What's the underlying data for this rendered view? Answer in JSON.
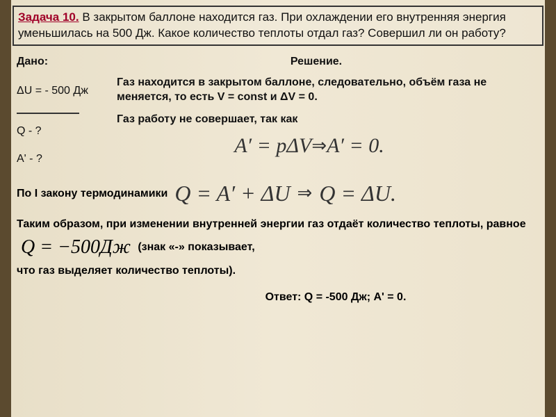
{
  "header": {
    "number": "Задача 10.",
    "text": " В закрытом баллоне находится газ. При охлаждении его внутренняя энергия уменьшилась на 500 Дж. Какое количество теплоты отдал газ? Совершил ли он работу?"
  },
  "given": {
    "title": "Дано:",
    "deltaU": "ΔU = - 500 Дж",
    "find1": "Q - ?",
    "find2": "A' - ?"
  },
  "solution": {
    "title": "Решение.",
    "line1": "Газ находится в закрытом баллоне, следовательно, объём газа не меняется, то есть V = const и ΔV = 0.",
    "line2": "Газ работу не совершает, так как",
    "formula1_left": "A′ = pΔV",
    "formula1_right": "A′ = 0.",
    "law_label": "По I закону термодинамики",
    "formula2_left": "Q = A′ + ΔU",
    "formula2_right": "Q = ΔU.",
    "conclusion1": "Таким образом, при изменении внутренней энергии газ отдаёт количество теплоты, равное",
    "q_value": "Q = −500Дж",
    "conclusion2": "(знак «-» показывает,",
    "conclusion3": "что газ выделяет количество теплоты).",
    "answer": "Ответ: Q = -500 Дж; A' = 0."
  },
  "colors": {
    "problem_number": "#a00028",
    "text": "#111111",
    "border": "#333333"
  }
}
